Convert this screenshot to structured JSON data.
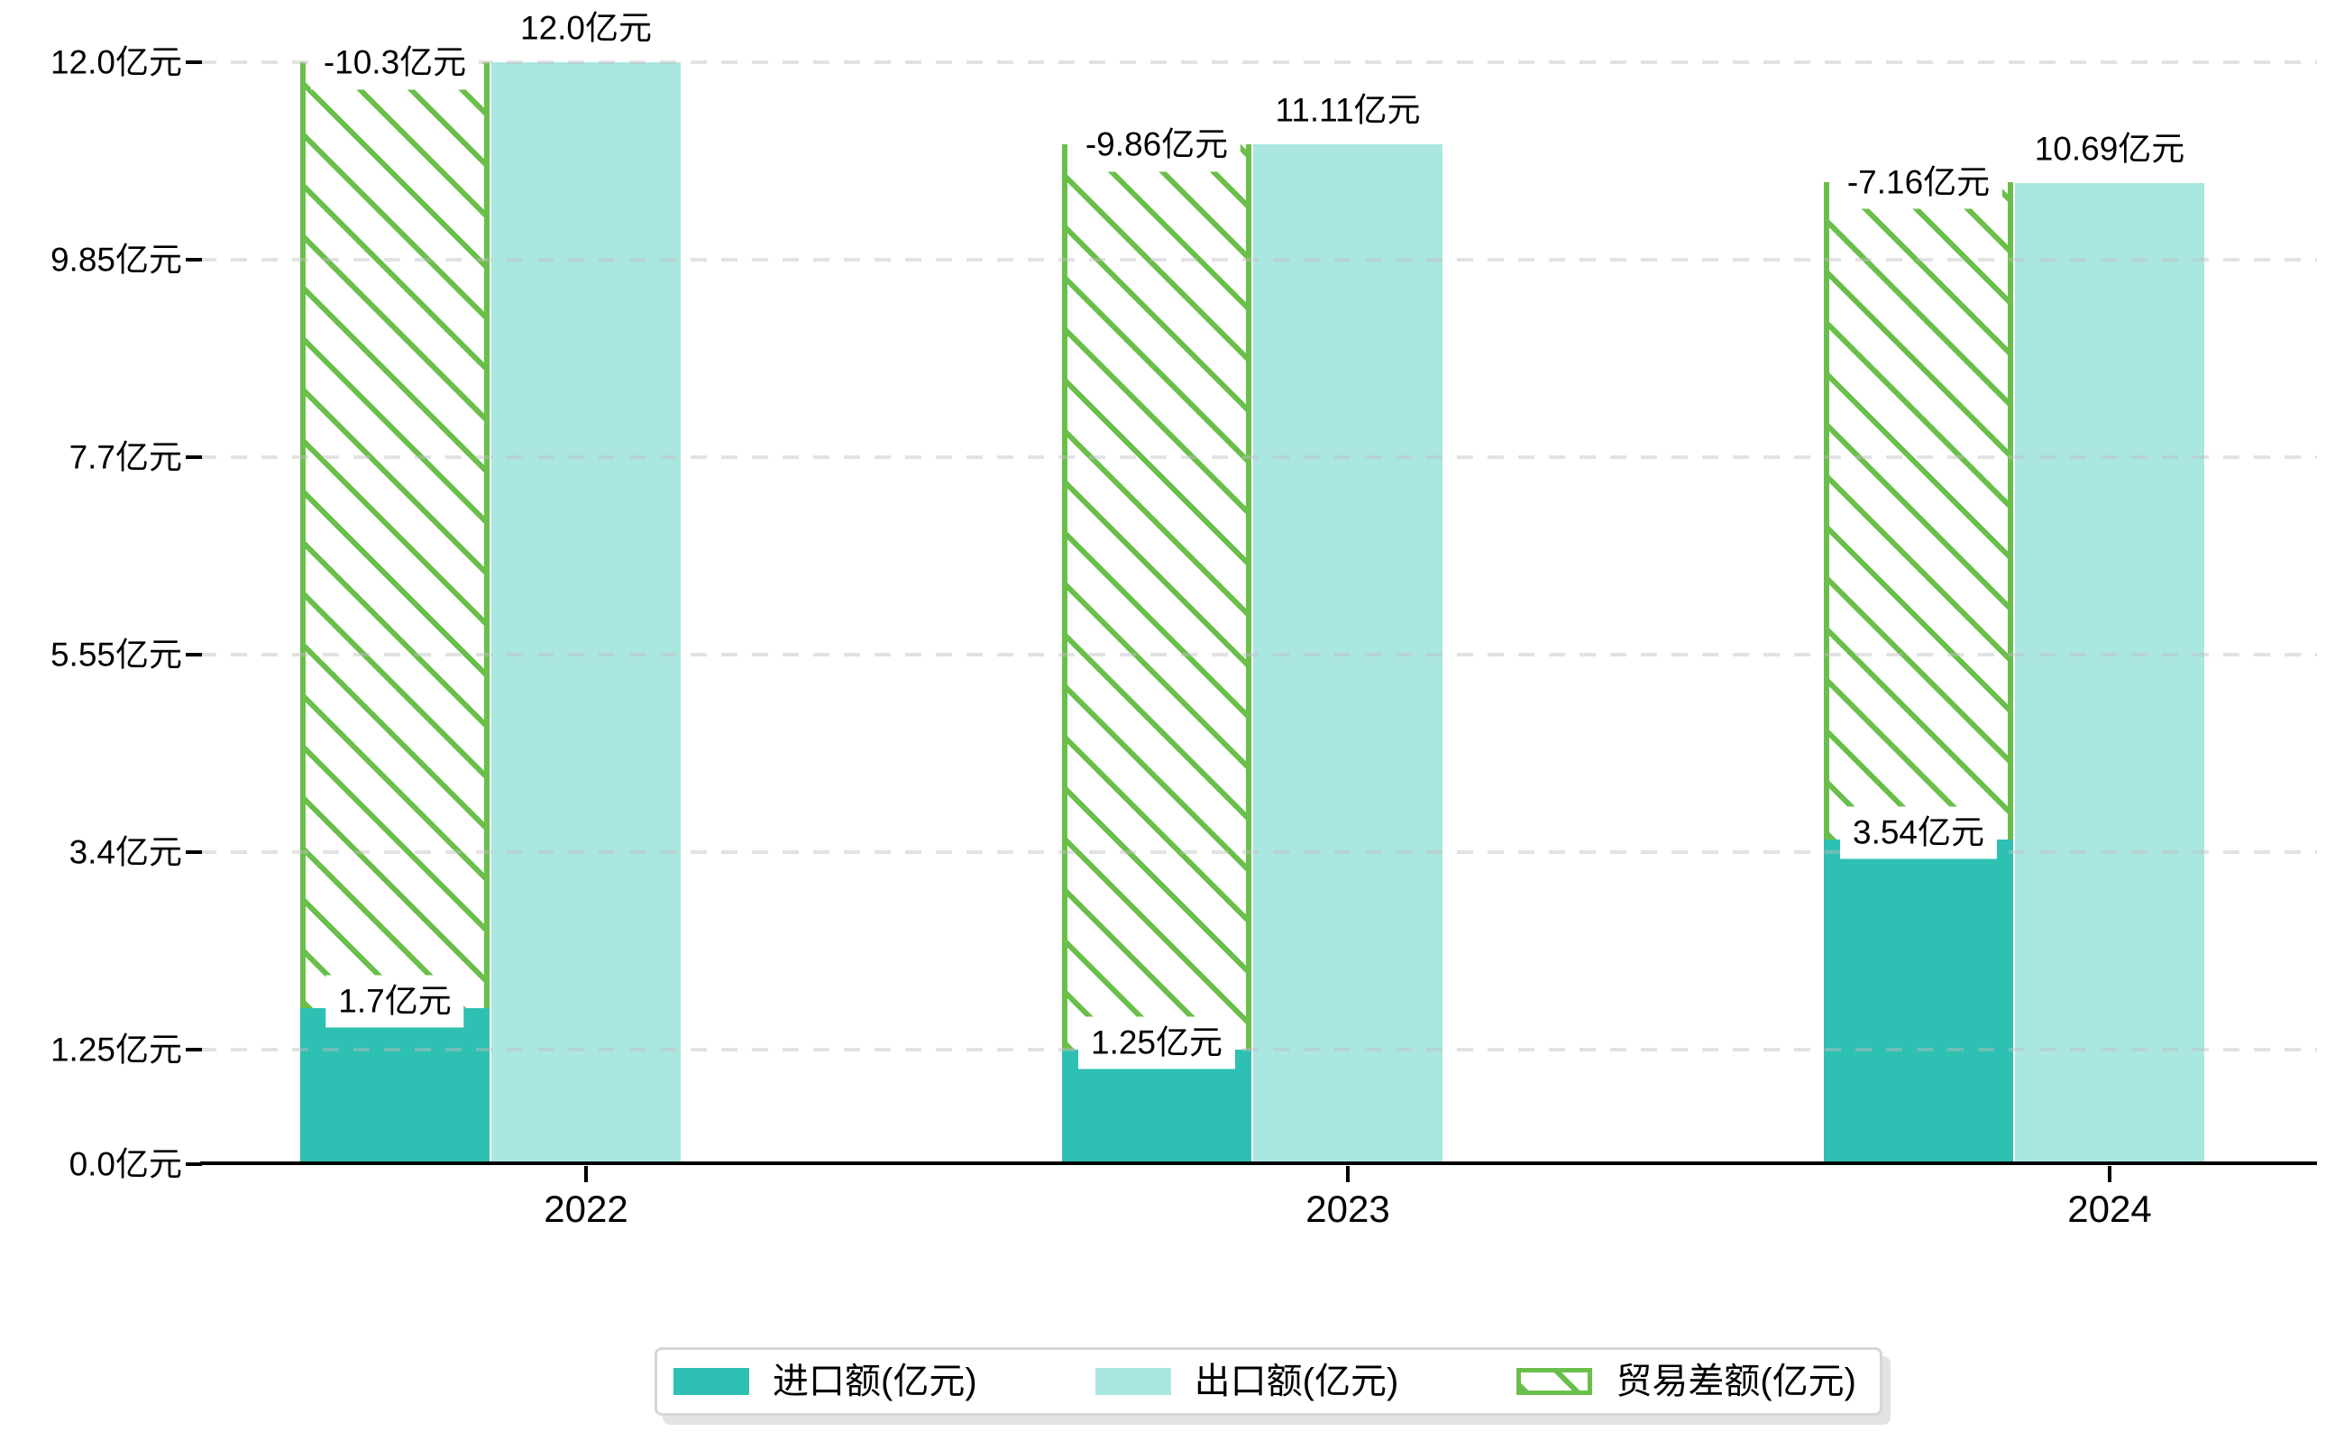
{
  "chart_data": {
    "type": "bar",
    "title": "",
    "categories": [
      "2022",
      "2023",
      "2024"
    ],
    "series": [
      {
        "name": "进口额(亿元)",
        "role": "import",
        "values": [
          1.7,
          1.25,
          3.54
        ],
        "labels": [
          "1.7亿元",
          "1.25亿元",
          "3.54亿元"
        ],
        "color": "#2ec0b2"
      },
      {
        "name": "出口额(亿元)",
        "role": "export",
        "values": [
          12.0,
          11.11,
          10.69
        ],
        "labels": [
          "12.0亿元",
          "11.11亿元",
          "10.69亿元"
        ],
        "color": "#abe7e1"
      },
      {
        "name": "贸易差额(亿元)",
        "role": "trade-balance",
        "style": "hatched",
        "values": [
          -10.3,
          -9.86,
          -7.16
        ],
        "labels": [
          "-10.3亿元",
          "-9.86亿元",
          "-7.16亿元"
        ],
        "color": "#6abf4b"
      }
    ],
    "y_axis": {
      "unit": "亿元",
      "range": [
        0,
        12.0
      ],
      "ticks": [
        0.0,
        1.25,
        3.4,
        5.55,
        7.7,
        9.85,
        12.0
      ],
      "tick_labels": [
        "0.0亿元",
        "1.25亿元",
        "3.4亿元",
        "5.55亿元",
        "7.7亿元",
        "9.85亿元",
        "12.0亿元"
      ]
    },
    "x_axis": {
      "tick_labels": [
        "2022",
        "2023",
        "2024"
      ]
    },
    "legend": {
      "position": "bottom",
      "entries": [
        "进口额(亿元)",
        "出口额(亿元)",
        "贸易差额(亿元)"
      ]
    },
    "grid": "horizontal-dashed-over-bars",
    "colors": {
      "import_bar": "#2ec0b2",
      "export_bar": "#abe7e1",
      "hatch_green": "#6abf4b",
      "axis": "#000000",
      "gridline": "#dedede",
      "label_text": "#000000",
      "legend_border": "#d6d6d6",
      "background": "#ffffff"
    }
  }
}
